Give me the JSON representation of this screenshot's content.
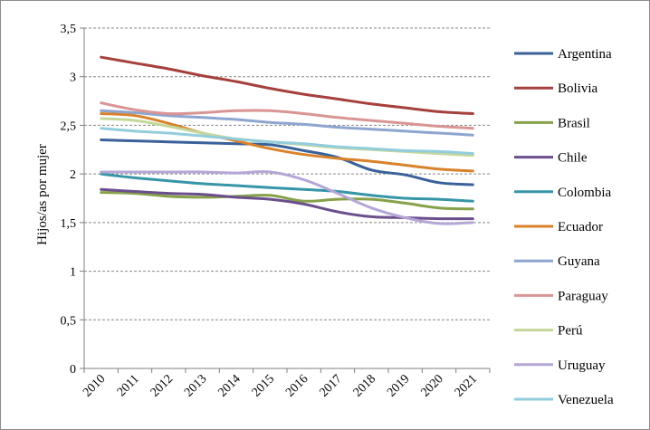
{
  "chart_data": {
    "type": "line",
    "title": "",
    "xlabel": "",
    "ylabel": "Hijos/as por mujer",
    "ylim": [
      0,
      3.5
    ],
    "ytick_labels": [
      "0",
      "0,5",
      "1",
      "1,5",
      "2",
      "2,5",
      "3",
      "3,5"
    ],
    "grid": "horizontal-dashed",
    "legend_position": "right",
    "categories": [
      "2010",
      "2011",
      "2012",
      "2013",
      "2014",
      "2015",
      "2016",
      "2017",
      "2018",
      "2019",
      "2020",
      "2021"
    ],
    "series": [
      {
        "name": "Argentina",
        "color": "#3a6199",
        "values": [
          2.35,
          2.34,
          2.33,
          2.32,
          2.31,
          2.3,
          2.24,
          2.17,
          2.04,
          1.99,
          1.91,
          1.89
        ]
      },
      {
        "name": "Bolivia",
        "color": "#a5403d",
        "values": [
          3.2,
          3.14,
          3.08,
          3.01,
          2.95,
          2.88,
          2.82,
          2.77,
          2.72,
          2.68,
          2.64,
          2.62
        ]
      },
      {
        "name": "Brasil",
        "color": "#86a14a",
        "values": [
          1.81,
          1.8,
          1.77,
          1.76,
          1.77,
          1.78,
          1.72,
          1.74,
          1.74,
          1.7,
          1.65,
          1.64
        ]
      },
      {
        "name": "Chile",
        "color": "#6b4e8c",
        "values": [
          1.84,
          1.82,
          1.8,
          1.79,
          1.76,
          1.74,
          1.69,
          1.61,
          1.56,
          1.55,
          1.54,
          1.54
        ]
      },
      {
        "name": "Colombia",
        "color": "#3795a8",
        "values": [
          2.0,
          1.96,
          1.93,
          1.9,
          1.88,
          1.86,
          1.84,
          1.82,
          1.78,
          1.75,
          1.74,
          1.72
        ]
      },
      {
        "name": "Ecuador",
        "color": "#d9822b",
        "values": [
          2.62,
          2.6,
          2.52,
          2.42,
          2.34,
          2.26,
          2.2,
          2.16,
          2.13,
          2.09,
          2.05,
          2.03
        ]
      },
      {
        "name": "Guyana",
        "color": "#8ea5cf",
        "values": [
          2.65,
          2.63,
          2.6,
          2.58,
          2.56,
          2.53,
          2.51,
          2.48,
          2.46,
          2.44,
          2.42,
          2.4
        ]
      },
      {
        "name": "Paraguay",
        "color": "#d99594",
        "values": [
          2.73,
          2.66,
          2.62,
          2.63,
          2.65,
          2.65,
          2.62,
          2.58,
          2.55,
          2.52,
          2.49,
          2.47
        ]
      },
      {
        "name": "Perú",
        "color": "#c4d79b",
        "values": [
          2.57,
          2.55,
          2.49,
          2.42,
          2.36,
          2.33,
          2.3,
          2.27,
          2.25,
          2.23,
          2.21,
          2.19
        ]
      },
      {
        "name": "Uruguay",
        "color": "#b4a7d6",
        "values": [
          2.02,
          2.02,
          2.02,
          2.02,
          2.01,
          2.02,
          1.94,
          1.8,
          1.65,
          1.55,
          1.49,
          1.5
        ]
      },
      {
        "name": "Venezuela",
        "color": "#93cddd",
        "values": [
          2.47,
          2.44,
          2.42,
          2.39,
          2.36,
          2.33,
          2.31,
          2.28,
          2.26,
          2.24,
          2.23,
          2.21
        ]
      }
    ]
  }
}
